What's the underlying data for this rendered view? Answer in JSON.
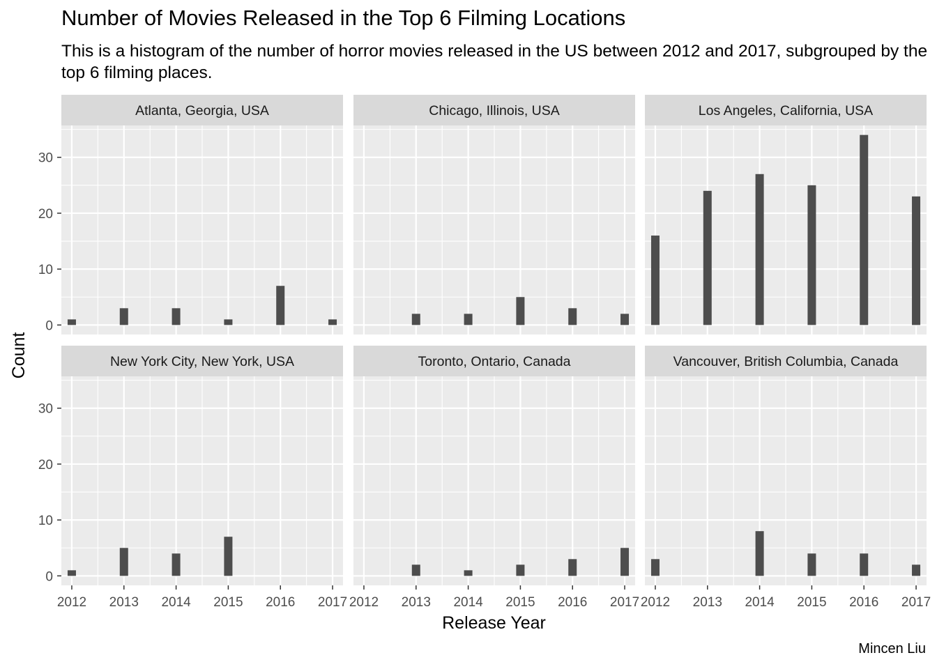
{
  "chart_data": {
    "type": "bar",
    "title": "Number of Movies Released in the Top 6 Filming Locations",
    "subtitle": "This is a histogram of the number of horror movies released in the US between 2012 and 2017, subgrouped by the top 6 filming places.",
    "xlabel": "Release Year",
    "ylabel": "Count",
    "caption": "Mincen Liu",
    "x_ticks": [
      "2012",
      "2013",
      "2014",
      "2015",
      "2016",
      "2017"
    ],
    "y_ticks": [
      "0",
      "10",
      "20",
      "30"
    ],
    "ylim": [
      -1.7,
      35.7
    ],
    "xlim": [
      2011.8,
      2017.2
    ],
    "grid": true,
    "panels": [
      {
        "name": "Atlanta, Georgia, USA",
        "x": [
          2012,
          2013,
          2014,
          2015,
          2016,
          2017
        ],
        "values": [
          1,
          3,
          3,
          1,
          7,
          1
        ]
      },
      {
        "name": "Chicago, Illinois, USA",
        "x": [
          2013,
          2014,
          2015,
          2016,
          2017
        ],
        "values": [
          2,
          2,
          5,
          3,
          2
        ]
      },
      {
        "name": "Los Angeles, California, USA",
        "x": [
          2012,
          2013,
          2014,
          2015,
          2016,
          2017
        ],
        "values": [
          16,
          24,
          27,
          25,
          34,
          23
        ]
      },
      {
        "name": "New York City, New York, USA",
        "x": [
          2012,
          2013,
          2014,
          2015
        ],
        "values": [
          1,
          5,
          4,
          7
        ]
      },
      {
        "name": "Toronto, Ontario, Canada",
        "x": [
          2013,
          2014,
          2015,
          2016,
          2017
        ],
        "values": [
          2,
          1,
          2,
          3,
          5
        ]
      },
      {
        "name": "Vancouver, British Columbia, Canada",
        "x": [
          2012,
          2014,
          2015,
          2016,
          2017
        ],
        "values": [
          3,
          8,
          4,
          4,
          2
        ]
      }
    ],
    "colors": {
      "bar": "#4d4d4d",
      "panel": "#ebebeb",
      "strip": "#d9d9d9",
      "grid": "#ffffff"
    }
  }
}
